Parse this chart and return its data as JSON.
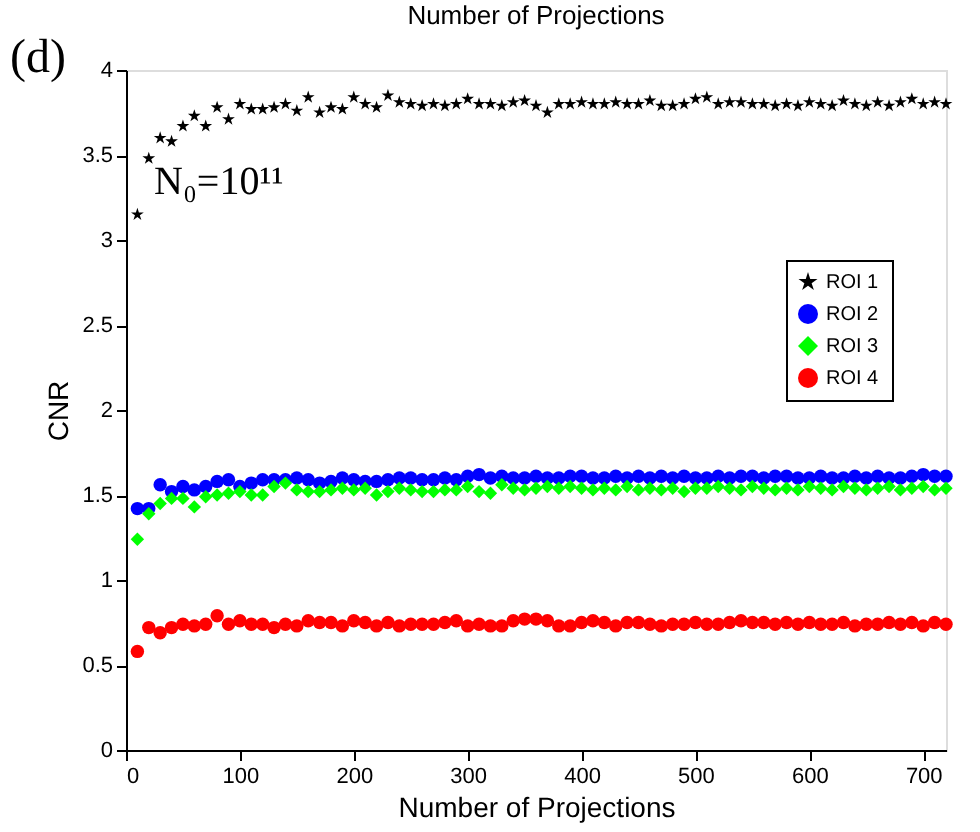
{
  "chart_data": {
    "type": "scatter",
    "title": "Number of Projections",
    "xlabel": "Number of Projections",
    "ylabel": "CNR",
    "annotations": [
      "(d)",
      "N₀=10¹¹"
    ],
    "x": [
      10,
      20,
      30,
      40,
      50,
      60,
      70,
      80,
      90,
      100,
      110,
      120,
      130,
      140,
      150,
      160,
      170,
      180,
      190,
      200,
      210,
      220,
      230,
      240,
      250,
      260,
      270,
      280,
      290,
      300,
      310,
      320,
      330,
      340,
      350,
      360,
      370,
      380,
      390,
      400,
      410,
      420,
      430,
      440,
      450,
      460,
      470,
      480,
      490,
      500,
      510,
      520,
      530,
      540,
      550,
      560,
      570,
      580,
      590,
      600,
      610,
      620,
      630,
      640,
      650,
      660,
      670,
      680,
      690,
      700,
      710,
      720
    ],
    "series": [
      {
        "name": "ROI 1",
        "color": "#000000",
        "marker": "star",
        "values": [
          3.15,
          3.48,
          3.6,
          3.58,
          3.67,
          3.73,
          3.67,
          3.78,
          3.71,
          3.8,
          3.77,
          3.77,
          3.78,
          3.8,
          3.76,
          3.84,
          3.75,
          3.78,
          3.77,
          3.84,
          3.8,
          3.78,
          3.85,
          3.81,
          3.8,
          3.79,
          3.8,
          3.79,
          3.8,
          3.83,
          3.8,
          3.8,
          3.79,
          3.81,
          3.82,
          3.79,
          3.75,
          3.8,
          3.8,
          3.81,
          3.8,
          3.8,
          3.81,
          3.8,
          3.8,
          3.82,
          3.79,
          3.79,
          3.8,
          3.83,
          3.84,
          3.8,
          3.81,
          3.81,
          3.8,
          3.8,
          3.79,
          3.8,
          3.79,
          3.81,
          3.8,
          3.79,
          3.82,
          3.8,
          3.79,
          3.81,
          3.79,
          3.81,
          3.83,
          3.8,
          3.81,
          3.8
        ]
      },
      {
        "name": "ROI 2",
        "color": "#0000ff",
        "marker": "circle",
        "values": [
          1.42,
          1.42,
          1.56,
          1.52,
          1.55,
          1.53,
          1.55,
          1.58,
          1.59,
          1.55,
          1.57,
          1.59,
          1.59,
          1.59,
          1.6,
          1.59,
          1.57,
          1.58,
          1.6,
          1.59,
          1.58,
          1.58,
          1.59,
          1.6,
          1.6,
          1.59,
          1.59,
          1.6,
          1.59,
          1.61,
          1.62,
          1.6,
          1.61,
          1.6,
          1.6,
          1.61,
          1.6,
          1.6,
          1.61,
          1.61,
          1.6,
          1.6,
          1.61,
          1.6,
          1.61,
          1.6,
          1.61,
          1.6,
          1.61,
          1.6,
          1.6,
          1.61,
          1.6,
          1.61,
          1.61,
          1.6,
          1.61,
          1.61,
          1.6,
          1.6,
          1.61,
          1.6,
          1.6,
          1.61,
          1.6,
          1.61,
          1.6,
          1.6,
          1.61,
          1.62,
          1.61,
          1.61
        ]
      },
      {
        "name": "ROI 3",
        "color": "#00ff00",
        "marker": "diamond",
        "values": [
          1.24,
          1.39,
          1.45,
          1.48,
          1.48,
          1.43,
          1.49,
          1.5,
          1.51,
          1.52,
          1.5,
          1.5,
          1.55,
          1.57,
          1.53,
          1.52,
          1.52,
          1.53,
          1.54,
          1.53,
          1.54,
          1.5,
          1.52,
          1.54,
          1.53,
          1.52,
          1.52,
          1.53,
          1.53,
          1.55,
          1.52,
          1.51,
          1.56,
          1.54,
          1.53,
          1.54,
          1.55,
          1.54,
          1.55,
          1.54,
          1.53,
          1.54,
          1.53,
          1.55,
          1.53,
          1.54,
          1.53,
          1.54,
          1.52,
          1.54,
          1.54,
          1.55,
          1.54,
          1.53,
          1.55,
          1.54,
          1.53,
          1.54,
          1.53,
          1.55,
          1.54,
          1.53,
          1.55,
          1.54,
          1.53,
          1.54,
          1.55,
          1.53,
          1.54,
          1.55,
          1.53,
          1.54
        ]
      },
      {
        "name": "ROI 4",
        "color": "#ff0000",
        "marker": "circle",
        "values": [
          0.58,
          0.72,
          0.69,
          0.72,
          0.74,
          0.73,
          0.74,
          0.79,
          0.74,
          0.76,
          0.74,
          0.74,
          0.72,
          0.74,
          0.73,
          0.76,
          0.75,
          0.75,
          0.73,
          0.76,
          0.75,
          0.73,
          0.75,
          0.73,
          0.74,
          0.74,
          0.74,
          0.75,
          0.76,
          0.73,
          0.74,
          0.73,
          0.73,
          0.76,
          0.77,
          0.77,
          0.76,
          0.73,
          0.73,
          0.75,
          0.76,
          0.75,
          0.73,
          0.75,
          0.75,
          0.74,
          0.73,
          0.74,
          0.74,
          0.75,
          0.74,
          0.74,
          0.75,
          0.76,
          0.75,
          0.75,
          0.74,
          0.75,
          0.74,
          0.75,
          0.74,
          0.74,
          0.75,
          0.73,
          0.74,
          0.74,
          0.75,
          0.74,
          0.75,
          0.73,
          0.75,
          0.74
        ]
      }
    ],
    "xlim": [
      0,
      720
    ],
    "xticks": [
      0,
      100,
      200,
      300,
      400,
      500,
      600,
      700
    ],
    "ylim": [
      0,
      4
    ],
    "yticks": [
      0,
      0.5,
      1,
      1.5,
      2,
      2.5,
      3,
      3.5,
      4
    ],
    "grid": false,
    "legend": "right"
  }
}
